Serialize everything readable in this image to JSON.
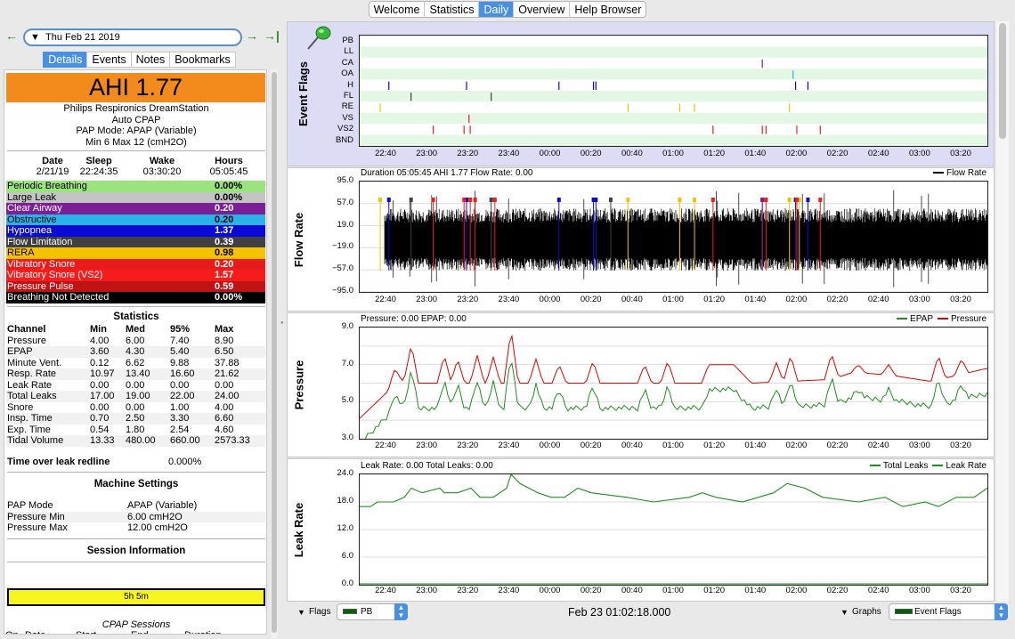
{
  "top_tabs": [
    "Welcome",
    "Statistics",
    "Daily",
    "Overview",
    "Help Browser"
  ],
  "active_tab": "Daily",
  "date_picker": {
    "value": "Thu Feb 21 2019",
    "prev_icon": "arrow-left-icon",
    "next_icon": "arrow-right-icon",
    "last_icon": "arrow-right-bar-icon"
  },
  "detail_tabs": [
    "Details",
    "Events",
    "Notes",
    "Bookmarks"
  ],
  "ahi": "AHI 1.77",
  "device": {
    "name": "Philips Respironics DreamStation",
    "model": "Auto CPAP",
    "mode": "PAP Mode: APAP (Variable)",
    "pressure": "Min 6 Max 12 (cmH2O)"
  },
  "summary": {
    "headers": [
      "Date",
      "Sleep",
      "Wake",
      "Hours"
    ],
    "values": [
      "2/21/19",
      "22:24:35",
      "03:30:20",
      "05:05:45"
    ]
  },
  "events": [
    {
      "name": "Periodic Breathing",
      "value": "0.00%",
      "bg": "#9ae37e",
      "fg": "#000"
    },
    {
      "name": "Large Leak",
      "value": "0.00%",
      "bg": "#c4c4c4",
      "fg": "#000"
    },
    {
      "name": "Clear Airway",
      "value": "0.20",
      "bg": "#7b1f96",
      "fg": "#fff"
    },
    {
      "name": "Obstructive",
      "value": "0.20",
      "bg": "#2ab3e8",
      "fg": "#000"
    },
    {
      "name": "Hypopnea",
      "value": "1.37",
      "bg": "#0a0ad4",
      "fg": "#fff"
    },
    {
      "name": "Flow Limitation",
      "value": "0.39",
      "bg": "#404040",
      "fg": "#fff"
    },
    {
      "name": "RERA",
      "value": "0.98",
      "bg": "#f5c200",
      "fg": "#000"
    },
    {
      "name": "Vibratory Snore",
      "value": "0.20",
      "bg": "#e81c1c",
      "fg": "#fff"
    },
    {
      "name": "Vibratory Snore (VS2)",
      "value": "1.57",
      "bg": "#f51c1c",
      "fg": "#fff"
    },
    {
      "name": "Pressure Pulse",
      "value": "0.59",
      "bg": "#c01414",
      "fg": "#fff"
    },
    {
      "name": "Breathing Not Detected",
      "value": "0.00%",
      "bg": "#000",
      "fg": "#fff"
    }
  ],
  "statistics": {
    "title": "Statistics",
    "headers": [
      "Channel",
      "Min",
      "Med",
      "95%",
      "Max"
    ],
    "rows": [
      [
        "Pressure",
        "4.00",
        "6.00",
        "7.40",
        "8.90"
      ],
      [
        "EPAP",
        "3.60",
        "4.30",
        "5.40",
        "6.50"
      ],
      [
        "Minute Vent.",
        "0.12",
        "6.62",
        "9.88",
        "37.88"
      ],
      [
        "Resp. Rate",
        "10.97",
        "13.40",
        "16.60",
        "21.62"
      ],
      [
        "Leak Rate",
        "0.00",
        "0.00",
        "0.00",
        "0.00"
      ],
      [
        "Total Leaks",
        "17.00",
        "19.00",
        "22.00",
        "24.00"
      ],
      [
        "Snore",
        "0.00",
        "0.00",
        "1.00",
        "4.00"
      ],
      [
        "Insp. Time",
        "0.70",
        "2.50",
        "3.30",
        "6.60"
      ],
      [
        "Exp. Time",
        "0.54",
        "1.80",
        "2.54",
        "4.60"
      ],
      [
        "Tidal Volume",
        "13.33",
        "480.00",
        "660.00",
        "2573.33"
      ]
    ]
  },
  "leak_redline": {
    "label": "Time over leak redline",
    "value": "0.000%"
  },
  "machine": {
    "title": "Machine Settings",
    "rows": [
      [
        "PAP Mode",
        "APAP (Variable)"
      ],
      [
        "Pressure Min",
        "6.00 cmH2O"
      ],
      [
        "Pressure Max",
        "12.00 cmH2O"
      ]
    ]
  },
  "session": {
    "title": "Session Information",
    "bar": "5h 5m",
    "cpap": "CPAP Sessions",
    "headers": [
      "On",
      "Date",
      "Start",
      "End",
      "Duration"
    ]
  },
  "time_ticks": [
    "22:40",
    "23:00",
    "23:20",
    "23:40",
    "00:00",
    "00:20",
    "00:40",
    "01:00",
    "01:20",
    "01:40",
    "02:00",
    "02:20",
    "02:40",
    "03:00",
    "03:20"
  ],
  "event_flags": {
    "label": "Event Flags",
    "pin_icon": "pushpin-icon",
    "rows": [
      "PB",
      "LL",
      "CA",
      "OA",
      "H",
      "FL",
      "RE",
      "VS",
      "VS2",
      "BND"
    ],
    "events": [
      {
        "row": "CA",
        "times": [
          3.05
        ],
        "color": "#7b1f96"
      },
      {
        "row": "OA",
        "times": [
          3.3
        ],
        "color": "#2ab3e8"
      },
      {
        "row": "H",
        "times": [
          0.02,
          0.65,
          1.4,
          1.68,
          1.7,
          3.32,
          3.42
        ],
        "color": "#0a0ad4"
      },
      {
        "row": "FL",
        "times": [
          0.2,
          0.85
        ],
        "color": "#404040"
      },
      {
        "row": "RE",
        "times": [
          -0.05,
          1.96,
          2.38,
          2.5,
          3.27
        ],
        "color": "#f5c200"
      },
      {
        "row": "VS",
        "times": [
          0.67
        ],
        "color": "#e81c1c"
      },
      {
        "row": "VS2",
        "times": [
          0.38,
          0.63,
          0.68,
          2.65,
          3.05,
          3.33,
          3.52,
          3.08
        ],
        "color": "#f51c1c"
      }
    ]
  },
  "flow": {
    "label": "Flow Rate",
    "title": "Duration 05:05:45 AHI 1.77 Flow Rate: 0.00",
    "legend": "Flow Rate",
    "yticks": [
      "95.0",
      "57.0",
      "19.0",
      "−19.0",
      "−57.0",
      "−95.0"
    ]
  },
  "pressure": {
    "label": "Pressure",
    "title": "Pressure: 0.00 EPAP: 0.00",
    "legend": [
      "EPAP",
      "Pressure"
    ],
    "yticks": [
      "9.0",
      "7.0",
      "5.0",
      "3.0"
    ]
  },
  "leak": {
    "label": "Leak Rate",
    "title": "Leak Rate: 0.00 Total Leaks: 0.00",
    "legend": [
      "Total Leaks",
      "Leak Rate"
    ],
    "yticks": [
      "24.0",
      "18.0",
      "12.0",
      "6.0",
      "0.0"
    ]
  },
  "bottom": {
    "flags_label": "Flags",
    "flags_value": "PB",
    "time": "Feb 23 01:02:18.000",
    "graphs_label": "Graphs",
    "graphs_value": "Event Flags"
  }
}
